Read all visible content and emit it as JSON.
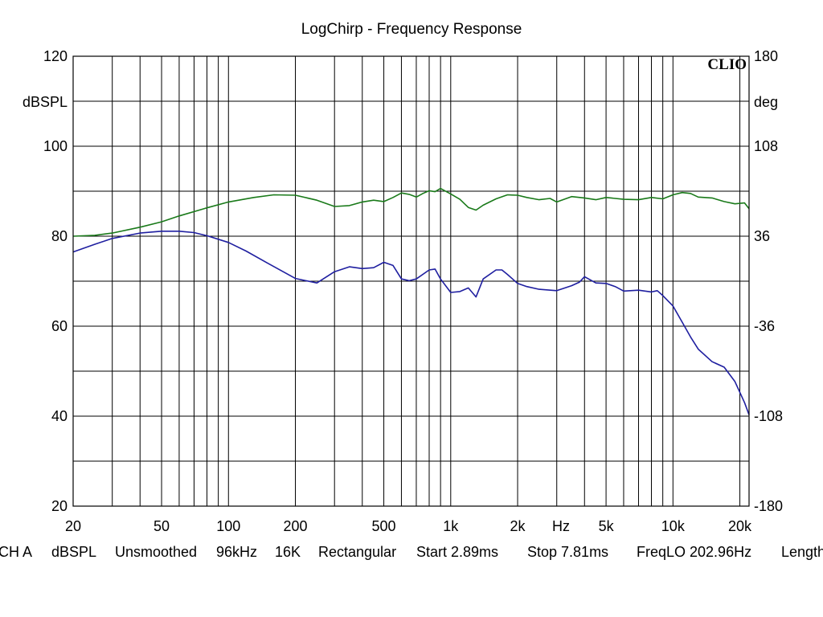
{
  "chart_data": {
    "type": "line",
    "title": "LogChirp - Frequency Response",
    "brand": "CLIO",
    "xscale": "log",
    "xlim": [
      20,
      22000
    ],
    "x_ticks": [
      {
        "value": 20,
        "label": "20"
      },
      {
        "value": 50,
        "label": "50"
      },
      {
        "value": 100,
        "label": "100"
      },
      {
        "value": 200,
        "label": "200"
      },
      {
        "value": 500,
        "label": "500"
      },
      {
        "value": 1000,
        "label": "1k"
      },
      {
        "value": 2000,
        "label": "2k"
      },
      {
        "value": 5000,
        "label": "5k"
      },
      {
        "value": 10000,
        "label": "10k"
      },
      {
        "value": 20000,
        "label": "20k"
      }
    ],
    "x_unit_label": "Hz",
    "y_left": {
      "label": "dBSPL",
      "lim": [
        20,
        120
      ],
      "ticks": [
        "120",
        "100",
        "80",
        "60",
        "40",
        "20"
      ]
    },
    "y_right": {
      "label": "deg",
      "lim": [
        -180,
        180
      ],
      "ticks": [
        "180",
        "108",
        "36",
        "-36",
        "-108",
        "-180"
      ]
    },
    "grid": true,
    "series": [
      {
        "color": "#1a7a1a",
        "axis": "left",
        "x": [
          20,
          25,
          30,
          40,
          50,
          60,
          80,
          100,
          130,
          160,
          200,
          250,
          300,
          350,
          400,
          450,
          500,
          550,
          600,
          650,
          700,
          750,
          800,
          850,
          900,
          1000,
          1100,
          1200,
          1300,
          1400,
          1600,
          1800,
          2000,
          2200,
          2500,
          2800,
          3000,
          3500,
          4000,
          4500,
          5000,
          6000,
          7000,
          8000,
          9000,
          10000,
          11000,
          12000,
          13000,
          15000,
          17000,
          19000,
          21000,
          22000
        ],
        "y": [
          80,
          80.2,
          80.7,
          82,
          83.2,
          84.5,
          86.3,
          87.6,
          88.6,
          89.2,
          89.1,
          88,
          86.6,
          86.8,
          87.6,
          88,
          87.7,
          88.6,
          89.6,
          89.3,
          88.7,
          89.5,
          90.1,
          89.9,
          90.6,
          89.4,
          88.2,
          86.4,
          85.8,
          86.9,
          88.3,
          89.2,
          89.1,
          88.6,
          88.1,
          88.4,
          87.6,
          88.8,
          88.5,
          88.1,
          88.6,
          88.2,
          88.1,
          88.6,
          88.3,
          89.2,
          89.7,
          89.5,
          88.7,
          88.5,
          87.7,
          87.2,
          87.4,
          86.1
        ]
      },
      {
        "color": "#1f1fa0",
        "axis": "left",
        "x": [
          20,
          25,
          30,
          40,
          50,
          60,
          70,
          80,
          100,
          120,
          150,
          200,
          250,
          300,
          350,
          400,
          450,
          500,
          550,
          600,
          650,
          700,
          800,
          850,
          900,
          1000,
          1100,
          1200,
          1300,
          1400,
          1600,
          1700,
          1800,
          2000,
          2200,
          2500,
          3000,
          3500,
          3800,
          4000,
          4500,
          5000,
          5500,
          6000,
          7000,
          8000,
          8500,
          9000,
          10000,
          11000,
          12000,
          13000,
          15000,
          17000,
          19000,
          21000,
          22000
        ],
        "y": [
          76.5,
          78.2,
          79.5,
          80.7,
          81.1,
          81.1,
          80.8,
          80.1,
          78.6,
          76.7,
          74,
          70.6,
          69.6,
          72.1,
          73.2,
          72.8,
          73,
          74.2,
          73.5,
          70.5,
          70.1,
          70.5,
          72.5,
          72.7,
          70.5,
          67.5,
          67.7,
          68.5,
          66.5,
          70.5,
          72.5,
          72.5,
          71.5,
          69.5,
          68.8,
          68.2,
          67.9,
          69,
          69.8,
          71,
          69.6,
          69.5,
          68.8,
          67.8,
          68,
          67.6,
          67.9,
          66.8,
          64.5,
          60.9,
          57.6,
          54.9,
          52.1,
          50.9,
          47.7,
          43,
          40.3
        ]
      }
    ]
  },
  "footer": {
    "channel": "CH A",
    "unit": "dBSPL",
    "smoothing": "Unsmoothed",
    "sample_rate": "96kHz",
    "fft_size": "16K",
    "window": "Rectangular",
    "start": "Start 2.89ms",
    "stop": "Stop 7.81ms",
    "freq_lo": "FreqLO 202.96Hz",
    "length": "Length"
  }
}
